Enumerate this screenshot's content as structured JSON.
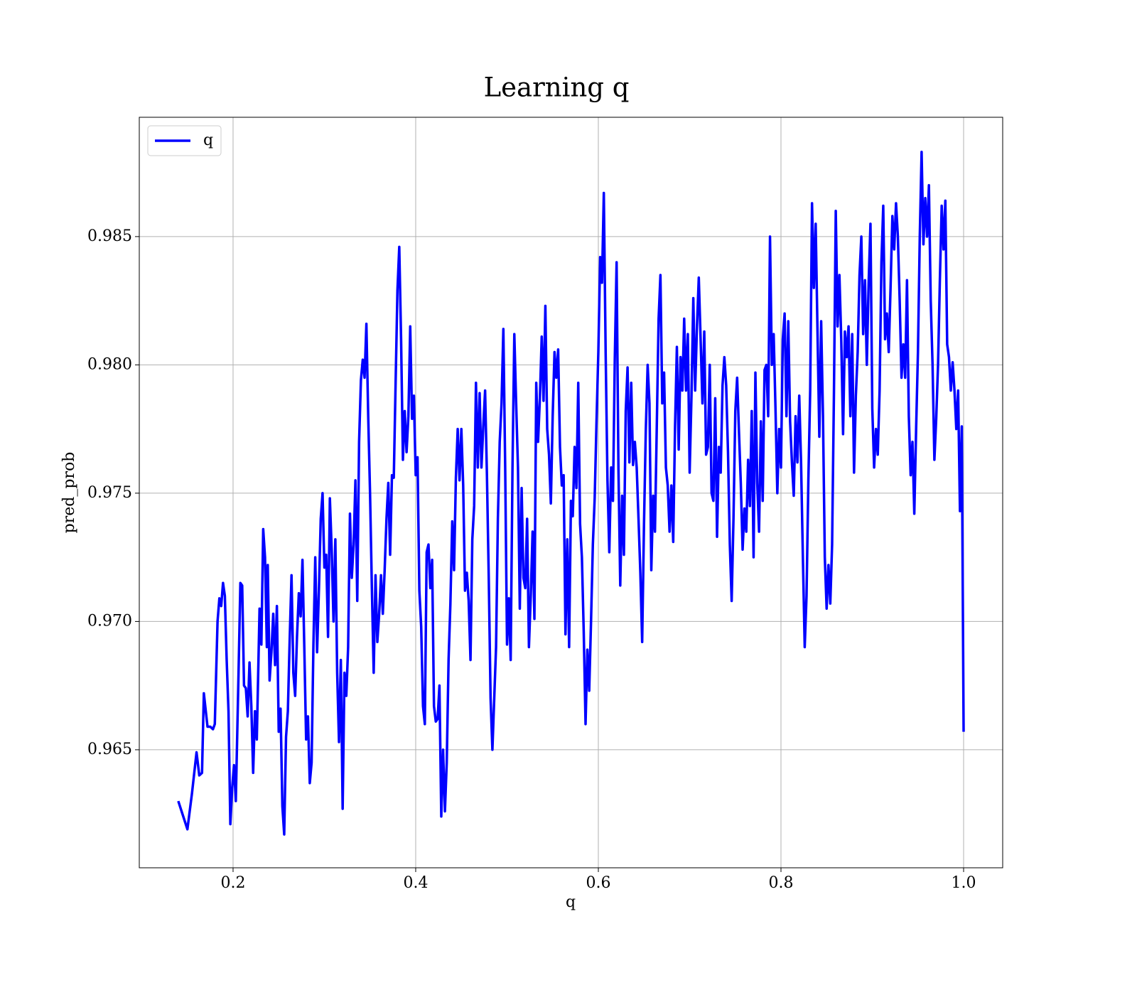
{
  "chart_data": {
    "type": "line",
    "title": "Learning q",
    "xlabel": "q",
    "ylabel": "pred_prob",
    "x": [
      0.14,
      0.15,
      0.155,
      0.16,
      0.163,
      0.166,
      0.168,
      0.172,
      0.175,
      0.178,
      0.18,
      0.183,
      0.185,
      0.187,
      0.189,
      0.191,
      0.193,
      0.195,
      0.197,
      0.199,
      0.201,
      0.203,
      0.206,
      0.208,
      0.21,
      0.212,
      0.214,
      0.216,
      0.218,
      0.22,
      0.222,
      0.224,
      0.226,
      0.229,
      0.231,
      0.233,
      0.235,
      0.237,
      0.238,
      0.24,
      0.242,
      0.244,
      0.246,
      0.248,
      0.25,
      0.252,
      0.254,
      0.256,
      0.258,
      0.26,
      0.262,
      0.264,
      0.266,
      0.268,
      0.27,
      0.272,
      0.274,
      0.276,
      0.278,
      0.28,
      0.282,
      0.284,
      0.286,
      0.288,
      0.29,
      0.292,
      0.294,
      0.296,
      0.298,
      0.3,
      0.302,
      0.304,
      0.306,
      0.308,
      0.31,
      0.312,
      0.314,
      0.316,
      0.318,
      0.32,
      0.322,
      0.324,
      0.326,
      0.328,
      0.33,
      0.332,
      0.334,
      0.336,
      0.338,
      0.34,
      0.342,
      0.344,
      0.346,
      0.348,
      0.35,
      0.352,
      0.354,
      0.356,
      0.358,
      0.36,
      0.362,
      0.364,
      0.366,
      0.368,
      0.37,
      0.372,
      0.374,
      0.376,
      0.378,
      0.38,
      0.382,
      0.384,
      0.386,
      0.388,
      0.39,
      0.392,
      0.394,
      0.396,
      0.398,
      0.4,
      0.402,
      0.404,
      0.406,
      0.408,
      0.41,
      0.412,
      0.414,
      0.416,
      0.418,
      0.42,
      0.422,
      0.424,
      0.426,
      0.428,
      0.43,
      0.432,
      0.434,
      0.436,
      0.438,
      0.44,
      0.442,
      0.444,
      0.446,
      0.448,
      0.45,
      0.452,
      0.454,
      0.456,
      0.458,
      0.46,
      0.462,
      0.464,
      0.466,
      0.468,
      0.47,
      0.472,
      0.474,
      0.476,
      0.478,
      0.48,
      0.482,
      0.484,
      0.486,
      0.488,
      0.49,
      0.492,
      0.494,
      0.496,
      0.498,
      0.5,
      0.502,
      0.504,
      0.506,
      0.508,
      0.51,
      0.512,
      0.514,
      0.516,
      0.518,
      0.52,
      0.522,
      0.524,
      0.526,
      0.528,
      0.53,
      0.532,
      0.534,
      0.536,
      0.538,
      0.54,
      0.542,
      0.544,
      0.546,
      0.548,
      0.55,
      0.552,
      0.554,
      0.556,
      0.558,
      0.56,
      0.562,
      0.564,
      0.566,
      0.568,
      0.57,
      0.572,
      0.574,
      0.576,
      0.578,
      0.58,
      0.582,
      0.584,
      0.586,
      0.588,
      0.59,
      0.592,
      0.594,
      0.596,
      0.598,
      0.6,
      0.602,
      0.604,
      0.606,
      0.608,
      0.61,
      0.612,
      0.614,
      0.616,
      0.618,
      0.62,
      0.622,
      0.624,
      0.626,
      0.628,
      0.63,
      0.632,
      0.634,
      0.636,
      0.638,
      0.64,
      0.642,
      0.644,
      0.646,
      0.648,
      0.65,
      0.652,
      0.654,
      0.656,
      0.658,
      0.66,
      0.662,
      0.664,
      0.666,
      0.668,
      0.67,
      0.672,
      0.674,
      0.676,
      0.678,
      0.68,
      0.682,
      0.684,
      0.686,
      0.688,
      0.69,
      0.692,
      0.694,
      0.696,
      0.698,
      0.7,
      0.702,
      0.704,
      0.706,
      0.708,
      0.71,
      0.712,
      0.714,
      0.716,
      0.718,
      0.72,
      0.722,
      0.724,
      0.726,
      0.728,
      0.73,
      0.732,
      0.734,
      0.736,
      0.738,
      0.74,
      0.742,
      0.744,
      0.746,
      0.748,
      0.75,
      0.752,
      0.754,
      0.756,
      0.758,
      0.76,
      0.762,
      0.764,
      0.766,
      0.768,
      0.77,
      0.772,
      0.774,
      0.776,
      0.778,
      0.78,
      0.782,
      0.784,
      0.786,
      0.788,
      0.79,
      0.792,
      0.794,
      0.796,
      0.798,
      0.8,
      0.802,
      0.804,
      0.806,
      0.808,
      0.81,
      0.812,
      0.814,
      0.816,
      0.818,
      0.82,
      0.822,
      0.824,
      0.826,
      0.828,
      0.83,
      0.832,
      0.834,
      0.836,
      0.838,
      0.84,
      0.842,
      0.844,
      0.846,
      0.848,
      0.85,
      0.852,
      0.854,
      0.856,
      0.858,
      0.86,
      0.862,
      0.864,
      0.866,
      0.868,
      0.87,
      0.872,
      0.874,
      0.876,
      0.878,
      0.88,
      0.882,
      0.884,
      0.886,
      0.888,
      0.89,
      0.892,
      0.894,
      0.896,
      0.898,
      0.9,
      0.902,
      0.904,
      0.906,
      0.908,
      0.91,
      0.912,
      0.914,
      0.916,
      0.918,
      0.92,
      0.922,
      0.924,
      0.926,
      0.928,
      0.93,
      0.932,
      0.934,
      0.936,
      0.938,
      0.94,
      0.942,
      0.944,
      0.946,
      0.948,
      0.95,
      0.952,
      0.954,
      0.956,
      0.958,
      0.96,
      0.962,
      0.964,
      0.966,
      0.968,
      0.97,
      0.972,
      0.974,
      0.976,
      0.978,
      0.98,
      0.982,
      0.984,
      0.986,
      0.988,
      0.99,
      0.992,
      0.994,
      0.996,
      0.998,
      1.0
    ],
    "series": [
      {
        "name": "q",
        "color": "#0000ff",
        "values": [
          0.963,
          0.9619,
          0.9633,
          0.9649,
          0.964,
          0.9641,
          0.9672,
          0.9659,
          0.9659,
          0.9658,
          0.966,
          0.97,
          0.9709,
          0.9706,
          0.9715,
          0.971,
          0.9685,
          0.9665,
          0.9621,
          0.9635,
          0.9644,
          0.963,
          0.968,
          0.9715,
          0.9714,
          0.9675,
          0.9674,
          0.9663,
          0.9684,
          0.9667,
          0.9641,
          0.9665,
          0.9654,
          0.9705,
          0.9691,
          0.9736,
          0.9725,
          0.969,
          0.9722,
          0.9677,
          0.9688,
          0.9703,
          0.9683,
          0.9706,
          0.9657,
          0.9666,
          0.9628,
          0.9617,
          0.9655,
          0.9665,
          0.9693,
          0.9718,
          0.968,
          0.9671,
          0.9694,
          0.9711,
          0.9702,
          0.9724,
          0.969,
          0.9654,
          0.9663,
          0.9637,
          0.9645,
          0.9691,
          0.9725,
          0.9688,
          0.9712,
          0.974,
          0.975,
          0.9721,
          0.9726,
          0.9694,
          0.9748,
          0.9728,
          0.97,
          0.9732,
          0.968,
          0.9653,
          0.9685,
          0.9627,
          0.968,
          0.9671,
          0.969,
          0.9742,
          0.9717,
          0.973,
          0.9755,
          0.9708,
          0.977,
          0.9794,
          0.9802,
          0.9795,
          0.9816,
          0.978,
          0.975,
          0.9713,
          0.968,
          0.9718,
          0.9692,
          0.9703,
          0.9718,
          0.9703,
          0.972,
          0.974,
          0.9754,
          0.9726,
          0.9757,
          0.9756,
          0.9793,
          0.9829,
          0.9846,
          0.981,
          0.9763,
          0.9782,
          0.9766,
          0.978,
          0.9815,
          0.9779,
          0.9788,
          0.9757,
          0.9764,
          0.9712,
          0.9698,
          0.9667,
          0.966,
          0.9727,
          0.973,
          0.9713,
          0.9724,
          0.9667,
          0.9661,
          0.9662,
          0.9675,
          0.9624,
          0.965,
          0.9626,
          0.9645,
          0.9685,
          0.9707,
          0.9739,
          0.972,
          0.9756,
          0.9775,
          0.9755,
          0.9775,
          0.9753,
          0.9712,
          0.9719,
          0.9708,
          0.9685,
          0.9732,
          0.9745,
          0.9793,
          0.976,
          0.9789,
          0.976,
          0.9776,
          0.979,
          0.9757,
          0.9717,
          0.967,
          0.965,
          0.967,
          0.969,
          0.974,
          0.977,
          0.9785,
          0.9814,
          0.976,
          0.9691,
          0.9709,
          0.9685,
          0.976,
          0.9812,
          0.9785,
          0.976,
          0.9705,
          0.9752,
          0.9717,
          0.9713,
          0.974,
          0.969,
          0.971,
          0.9735,
          0.9701,
          0.9793,
          0.977,
          0.9787,
          0.9811,
          0.9786,
          0.9823,
          0.9775,
          0.9765,
          0.9746,
          0.978,
          0.9805,
          0.9795,
          0.9806,
          0.9768,
          0.9753,
          0.9757,
          0.9695,
          0.9732,
          0.969,
          0.9747,
          0.9741,
          0.9768,
          0.9752,
          0.9793,
          0.9738,
          0.9725,
          0.9696,
          0.966,
          0.9689,
          0.9673,
          0.97,
          0.973,
          0.9748,
          0.9778,
          0.9805,
          0.9842,
          0.9832,
          0.9867,
          0.9805,
          0.9755,
          0.9727,
          0.976,
          0.9747,
          0.9802,
          0.984,
          0.976,
          0.9714,
          0.9749,
          0.9726,
          0.9782,
          0.9799,
          0.9762,
          0.9793,
          0.9761,
          0.977,
          0.976,
          0.974,
          0.9719,
          0.9692,
          0.9738,
          0.9775,
          0.98,
          0.9785,
          0.972,
          0.9749,
          0.9735,
          0.9776,
          0.9818,
          0.9835,
          0.9785,
          0.9797,
          0.976,
          0.9753,
          0.9735,
          0.9753,
          0.9731,
          0.9776,
          0.9807,
          0.9767,
          0.9803,
          0.979,
          0.9818,
          0.979,
          0.9812,
          0.9758,
          0.9788,
          0.9826,
          0.979,
          0.9815,
          0.9834,
          0.981,
          0.9785,
          0.9813,
          0.9765,
          0.9768,
          0.98,
          0.975,
          0.9747,
          0.9787,
          0.9733,
          0.9768,
          0.9758,
          0.9792,
          0.9803,
          0.9792,
          0.9766,
          0.973,
          0.9708,
          0.974,
          0.9782,
          0.9795,
          0.9774,
          0.9754,
          0.9728,
          0.9744,
          0.9735,
          0.9763,
          0.9745,
          0.9782,
          0.9725,
          0.9797,
          0.9754,
          0.9735,
          0.9778,
          0.9747,
          0.9798,
          0.98,
          0.978,
          0.985,
          0.98,
          0.9812,
          0.9783,
          0.975,
          0.9775,
          0.976,
          0.981,
          0.982,
          0.978,
          0.9817,
          0.9778,
          0.9762,
          0.9749,
          0.978,
          0.9762,
          0.9788,
          0.9762,
          0.9725,
          0.969,
          0.971,
          0.9755,
          0.979,
          0.9863,
          0.983,
          0.9855,
          0.9813,
          0.9772,
          0.9817,
          0.978,
          0.9725,
          0.9705,
          0.9722,
          0.9707,
          0.973,
          0.9789,
          0.986,
          0.9815,
          0.9835,
          0.981,
          0.9773,
          0.9813,
          0.9803,
          0.9815,
          0.978,
          0.9812,
          0.9758,
          0.9788,
          0.9805,
          0.9835,
          0.985,
          0.9812,
          0.9833,
          0.98,
          0.9832,
          0.9855,
          0.9783,
          0.976,
          0.9775,
          0.9765,
          0.979,
          0.984,
          0.9862,
          0.981,
          0.982,
          0.9805,
          0.983,
          0.9858,
          0.9845,
          0.9863,
          0.985,
          0.9825,
          0.9795,
          0.9808,
          0.9795,
          0.9833,
          0.978,
          0.9757,
          0.977,
          0.9742,
          0.9775,
          0.9805,
          0.985,
          0.9883,
          0.9847,
          0.9865,
          0.985,
          0.987,
          0.9825,
          0.98,
          0.9763,
          0.9779,
          0.98,
          0.9833,
          0.9862,
          0.9845,
          0.9864,
          0.9808,
          0.9803,
          0.979,
          0.9801,
          0.979,
          0.9775,
          0.979,
          0.9743,
          0.9776,
          0.9657
        ]
      }
    ],
    "xlim": [
      0.0973,
      1.0428
    ],
    "ylim": [
      0.9604,
      0.98965
    ],
    "xticks": [
      0.2,
      0.4,
      0.6,
      0.8,
      {
        "value": 1,
        "label": "1.0"
      }
    ],
    "yticks": [
      0.965,
      {
        "value": 0.97,
        "label": "0.970"
      },
      0.975,
      {
        "value": 0.98,
        "label": "0.980"
      },
      0.985
    ],
    "grid": true,
    "legend": "upper-left"
  }
}
